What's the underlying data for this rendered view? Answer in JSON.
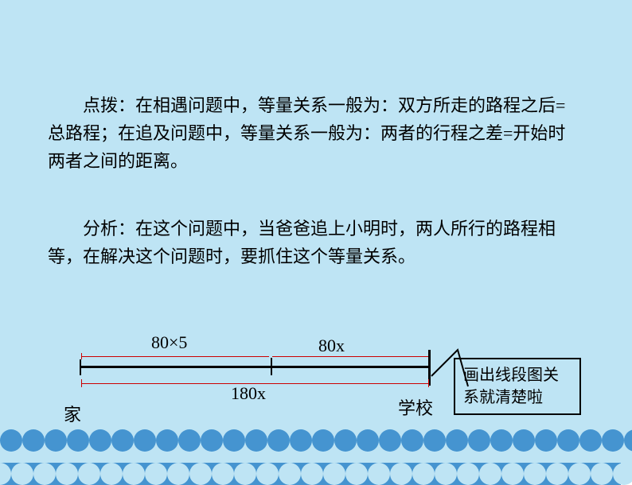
{
  "colors": {
    "sky": "#bee4f4",
    "water": "#4594d0",
    "scallop_light": "#bee4f4",
    "scallop_dark": "#4594d0",
    "text": "#000000",
    "dim_line": "#cc0000",
    "main_line": "#000000"
  },
  "paragraph1": "点拨：在相遇问题中，等量关系一般为：双方所走的路程之后=总路程；在追及问题中，等量关系一般为：两者的行程之差=开始时两者之间的距离。",
  "paragraph2": "分析：在这个问题中，当爸爸追上小明时，两人所行的路程相等，在解决这个问题时，要抓住这个等量关系。",
  "diagram": {
    "upper_left_label": "80×5",
    "upper_right_label": "80x",
    "lower_label": "180x",
    "left_point": "家",
    "right_point": "学校",
    "callout": "画出线段图关系就清楚啦"
  },
  "typography": {
    "body_fontsize": 22,
    "callout_fontsize": 20,
    "font_family": "KaiTi"
  }
}
